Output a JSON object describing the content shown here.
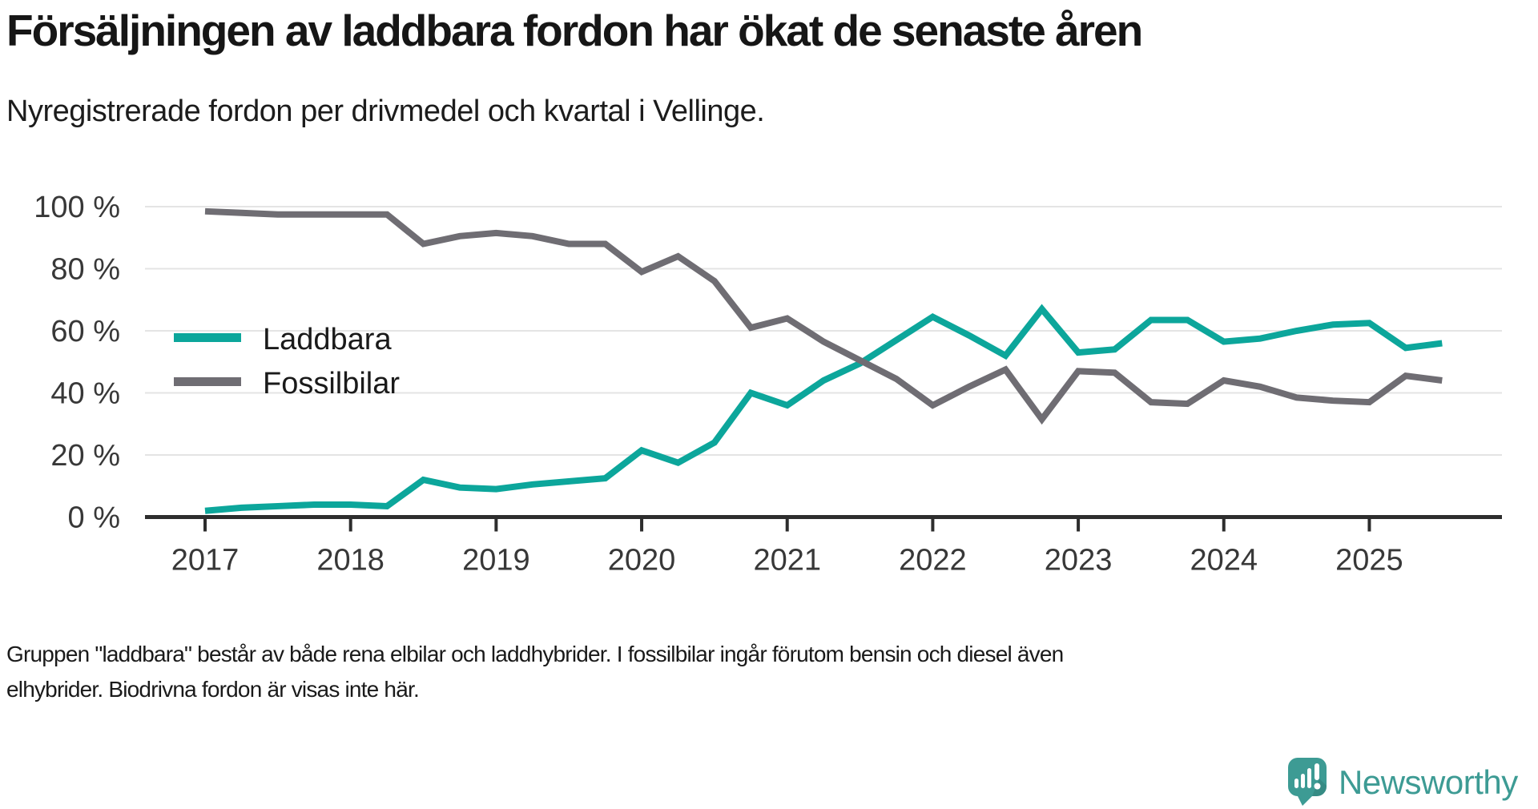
{
  "header": {
    "title": "Försäljningen av laddbara fordon har ökat de senaste åren",
    "subtitle": "Nyregistrerade fordon per drivmedel och kvartal i Vellinge."
  },
  "footer": {
    "line1": "Gruppen \"laddbara\" består av både rena elbilar och laddhybrider. I fossilbilar ingår förutom bensin och diesel även",
    "line2": "elhybrider. Biodrivna fordon är visas inte här."
  },
  "branding": {
    "name": "Newsworthy",
    "color": "#3d9b94",
    "icon": "newsworthy-speech-bubble-bar-chart-icon"
  },
  "chart_data": {
    "type": "line",
    "title": "Försäljningen av laddbara fordon har ökat de senaste åren",
    "subtitle": "Nyregistrerade fordon per drivmedel och kvartal i Vellinge.",
    "x_unit": "kvartal",
    "x": [
      "2017 K1",
      "2017 K2",
      "2017 K3",
      "2017 K4",
      "2018 K1",
      "2018 K2",
      "2018 K3",
      "2018 K4",
      "2019 K1",
      "2019 K2",
      "2019 K3",
      "2019 K4",
      "2020 K1",
      "2020 K2",
      "2020 K3",
      "2020 K4",
      "2021 K1",
      "2021 K2",
      "2021 K3",
      "2021 K4",
      "2022 K1",
      "2022 K2",
      "2022 K3",
      "2022 K4",
      "2023 K1",
      "2023 K2",
      "2023 K3",
      "2023 K4",
      "2024 K1",
      "2024 K2",
      "2024 K3",
      "2024 K4",
      "2025 K1",
      "2025 K2",
      "2025 K3"
    ],
    "series": [
      {
        "name": "Laddbara",
        "color": "#0ca69b",
        "values": [
          2,
          3,
          3.5,
          4,
          4,
          3.5,
          12,
          9.5,
          9,
          10.5,
          11.5,
          12.5,
          21.5,
          17.5,
          24,
          40,
          36,
          44,
          49.5,
          57,
          64.5,
          58.5,
          52,
          67,
          53,
          54,
          63.5,
          63.5,
          56.5,
          57.5,
          60,
          62,
          62.5,
          54.5,
          56
        ]
      },
      {
        "name": "Fossilbilar",
        "color": "#6f6d73",
        "values": [
          98.5,
          98,
          97.5,
          97.5,
          97.5,
          97.5,
          88,
          90.5,
          91.5,
          90.5,
          88,
          88,
          79,
          84,
          76,
          61,
          64,
          56.5,
          50.5,
          44.5,
          36,
          42,
          47.5,
          31.5,
          47,
          46.5,
          37,
          36.5,
          44,
          42,
          38.5,
          37.5,
          37,
          45.5,
          44
        ]
      }
    ],
    "x_ticks": [
      "2017",
      "2018",
      "2019",
      "2020",
      "2021",
      "2022",
      "2023",
      "2024",
      "2025"
    ],
    "y_ticks": [
      "0 %",
      "20 %",
      "40 %",
      "60 %",
      "80 %",
      "100 %"
    ],
    "y_tick_values": [
      0,
      20,
      40,
      60,
      80,
      100
    ],
    "ylim": [
      0,
      100
    ],
    "grid": true,
    "legend_position": "inside-left",
    "axis_color": "#2d2d2d",
    "grid_color": "#e4e4e4",
    "tick_label_color": "#383838"
  }
}
